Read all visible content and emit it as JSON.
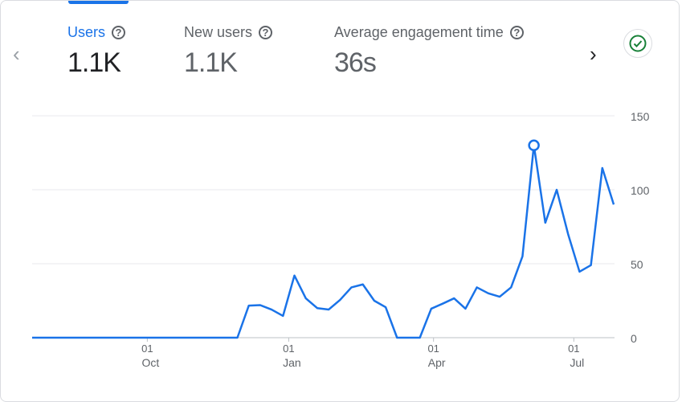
{
  "metrics": [
    {
      "label": "Users",
      "value": "1.1K",
      "active": true
    },
    {
      "label": "New users",
      "value": "1.1K",
      "active": false
    },
    {
      "label": "Average engagement time",
      "value": "36s",
      "active": false
    }
  ],
  "help_glyph": "?",
  "nav": {
    "prev": "‹",
    "next": "›"
  },
  "colors": {
    "accent": "#1a73e8",
    "check": "#188038",
    "grid": "#e8eaed"
  },
  "chart_data": {
    "type": "line",
    "title": "Users",
    "ylim": [
      0,
      150
    ],
    "yticks": [
      {
        "label": "0",
        "v": 0
      },
      {
        "label": "50",
        "v": 50
      },
      {
        "label": "100",
        "v": 100
      },
      {
        "label": "150",
        "v": 150
      }
    ],
    "xticks": [
      {
        "day": "01",
        "month": "Oct",
        "at": 10.1
      },
      {
        "day": "01",
        "month": "Jan",
        "at": 22.5
      },
      {
        "day": "01",
        "month": "Apr",
        "at": 35.2
      },
      {
        "day": "01",
        "month": "Jul",
        "at": 47.5
      }
    ],
    "series": [
      {
        "name": "Users",
        "values": [
          0,
          0,
          0,
          0,
          0,
          0,
          0,
          0,
          0,
          0,
          0,
          0,
          0,
          0,
          0,
          0,
          0,
          0,
          0,
          21.7,
          22,
          19,
          14.7,
          42,
          26.6,
          20,
          19,
          25.5,
          34,
          36,
          25,
          20.6,
          0,
          0,
          0,
          19.6,
          23,
          26.6,
          19.6,
          34,
          30,
          27.7,
          34,
          55,
          130,
          77.7,
          100,
          70,
          44.6,
          49,
          114.7,
          90
        ]
      }
    ],
    "highlight_index": 44,
    "grid": true
  }
}
